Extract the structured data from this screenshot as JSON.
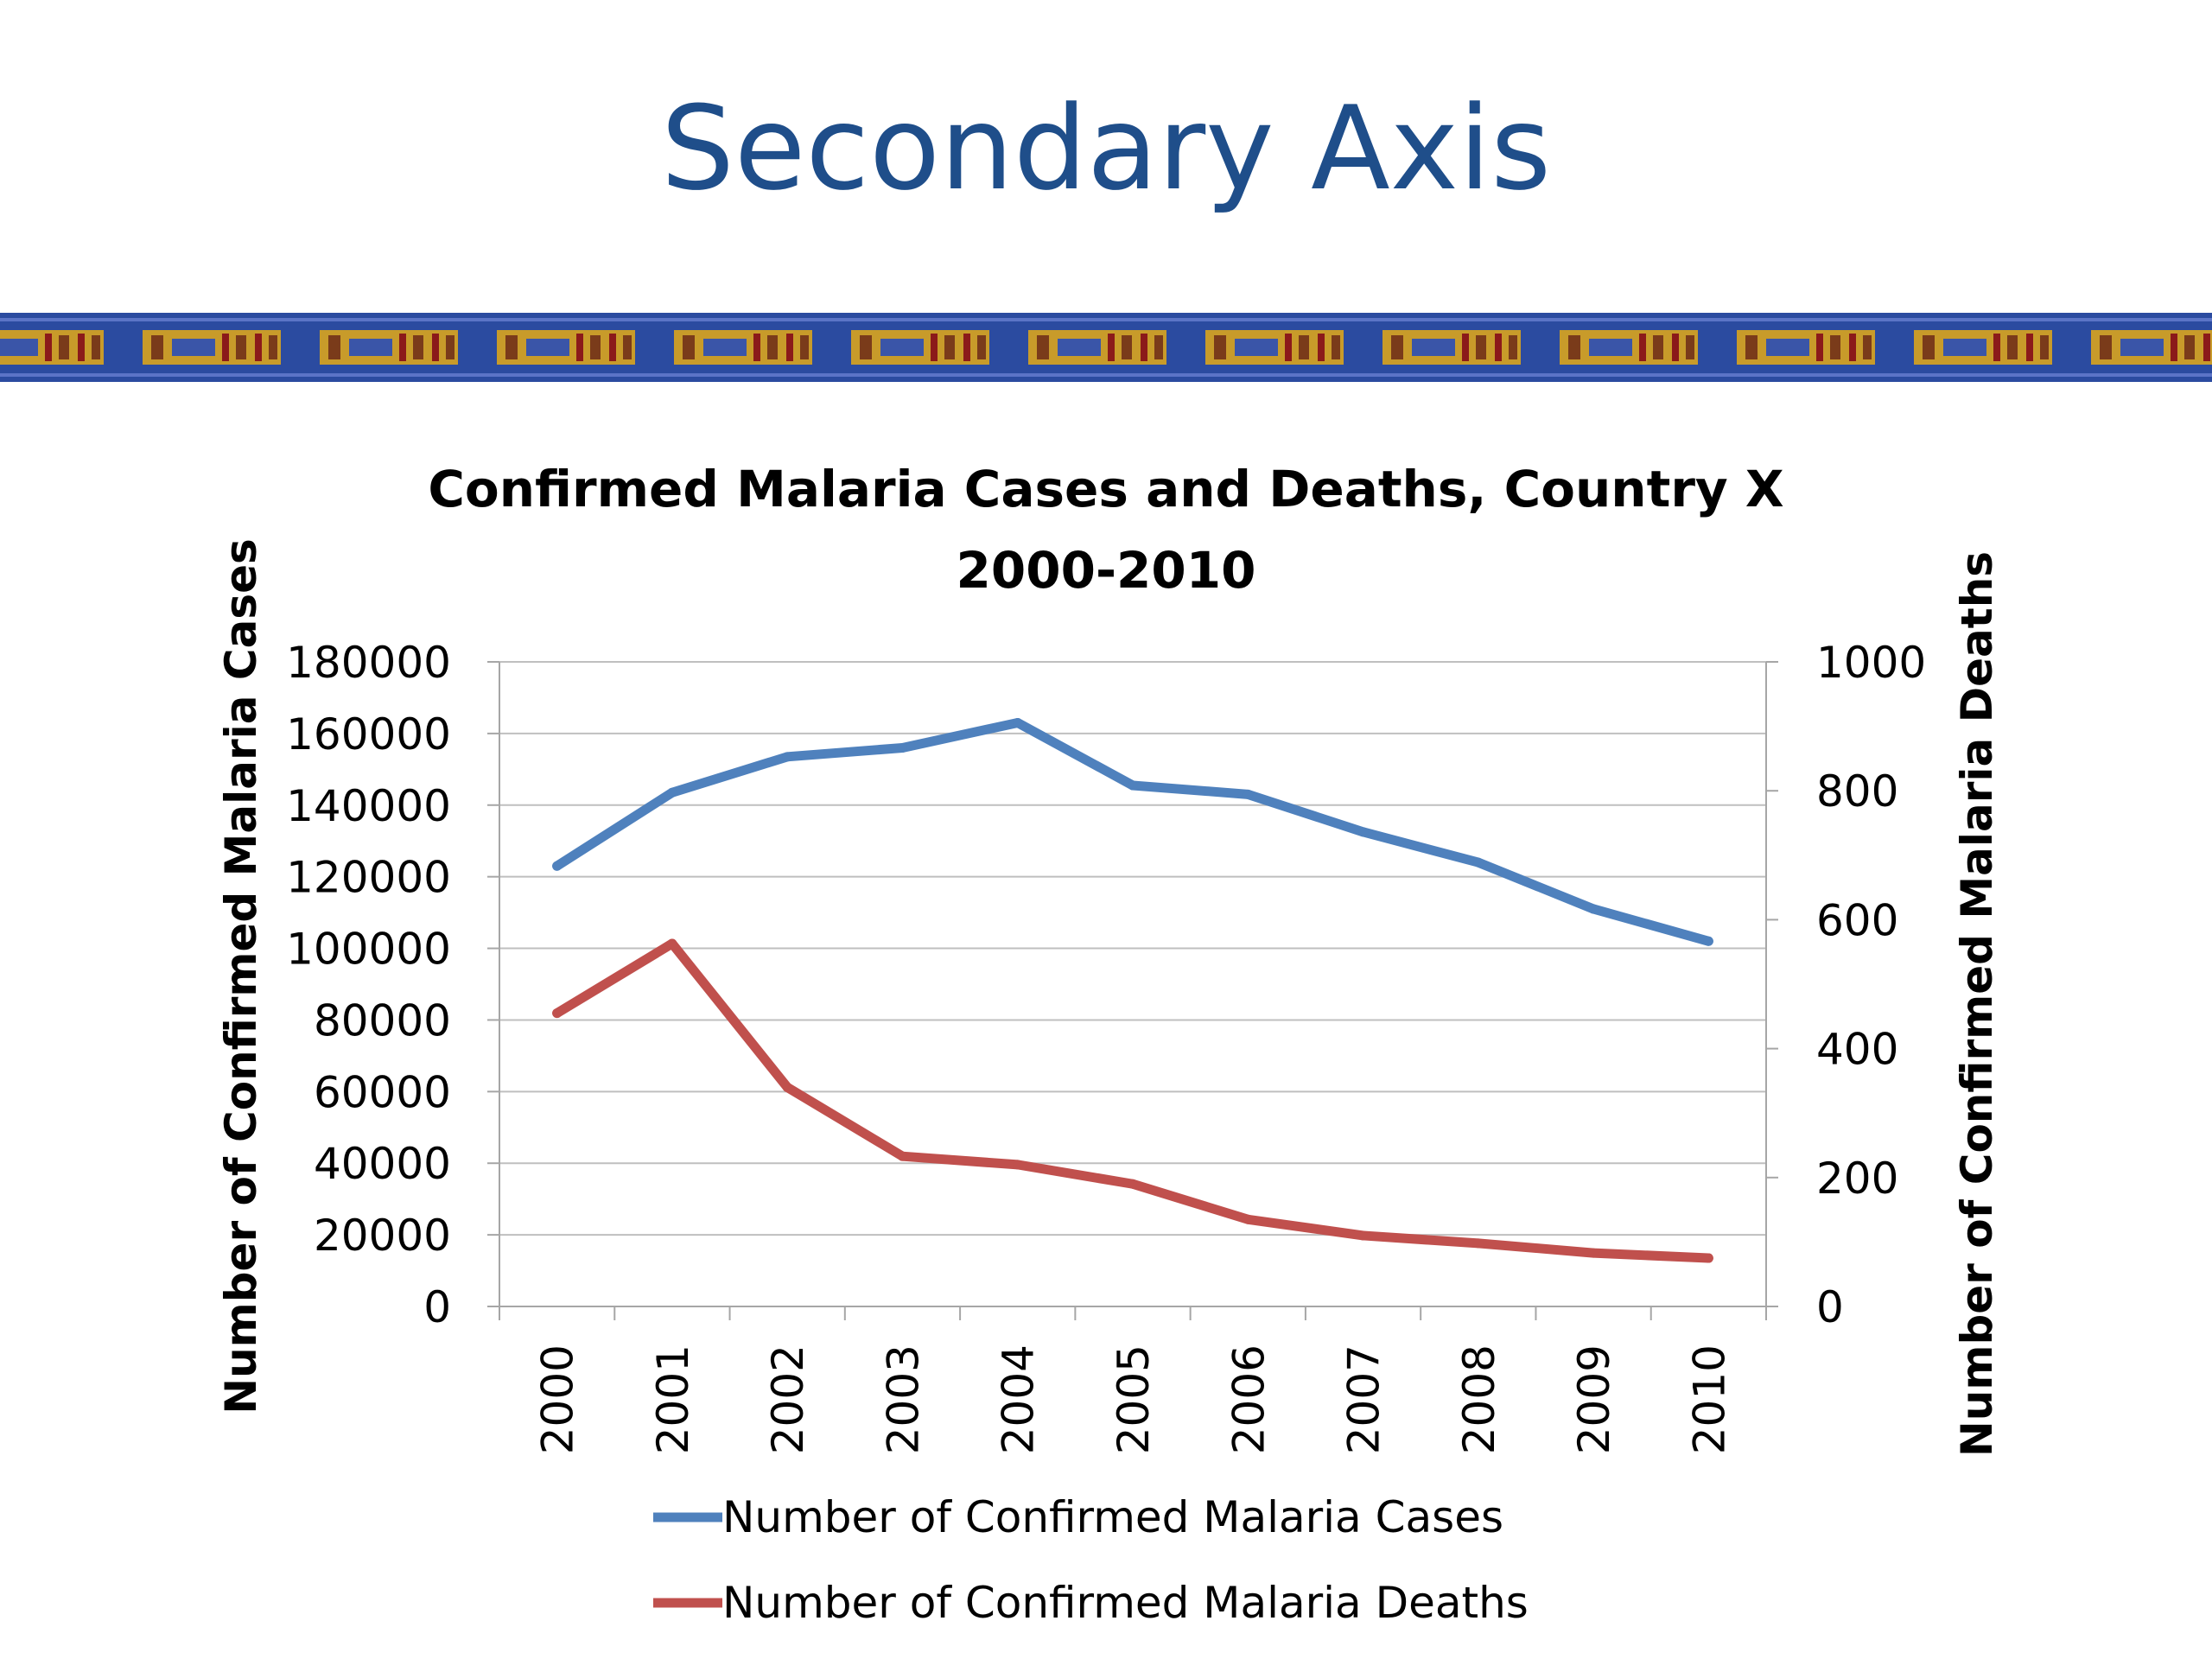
{
  "slide": {
    "title": "Secondary Axis"
  },
  "colors": {
    "title": "#1f4e8a",
    "banner_blue": "#2b4ba0",
    "banner_gold": "#c89b2a",
    "cases_line": "#4f81bd",
    "deaths_line": "#c0504d",
    "grid": "#bfbfbf",
    "axis": "#a6a6a6"
  },
  "chart_data": {
    "type": "line",
    "title": "Confirmed Malaria Cases and Deaths, Country X",
    "subtitle": "2000-2010",
    "categories": [
      "2000",
      "2001",
      "2002",
      "2003",
      "2004",
      "2005",
      "2006",
      "2007",
      "2008",
      "2009",
      "2010"
    ],
    "y_left": {
      "label": "Number of Confirmed Malaria Cases",
      "range": [
        0,
        180000
      ],
      "ticks": [
        "0",
        "20000",
        "40000",
        "60000",
        "80000",
        "100000",
        "120000",
        "140000",
        "160000",
        "180000"
      ]
    },
    "y_right": {
      "label": "Number of Confirmed Malaria Deaths",
      "range": [
        0,
        1000
      ],
      "ticks": [
        "0",
        "200",
        "400",
        "600",
        "800",
        "1000"
      ]
    },
    "series": [
      {
        "name": "Number of Confirmed Malaria Cases",
        "axis": "left",
        "color": "#4f81bd",
        "values": [
          123000,
          143500,
          153500,
          156000,
          163000,
          145500,
          143000,
          132500,
          124000,
          111000,
          102000
        ]
      },
      {
        "name": "Number of Confirmed Malaria Deaths",
        "axis": "right",
        "color": "#c0504d",
        "values": [
          455,
          563,
          340,
          233,
          220,
          190,
          135,
          110,
          98,
          83,
          75
        ]
      }
    ],
    "grid": true,
    "legend": "bottom"
  }
}
